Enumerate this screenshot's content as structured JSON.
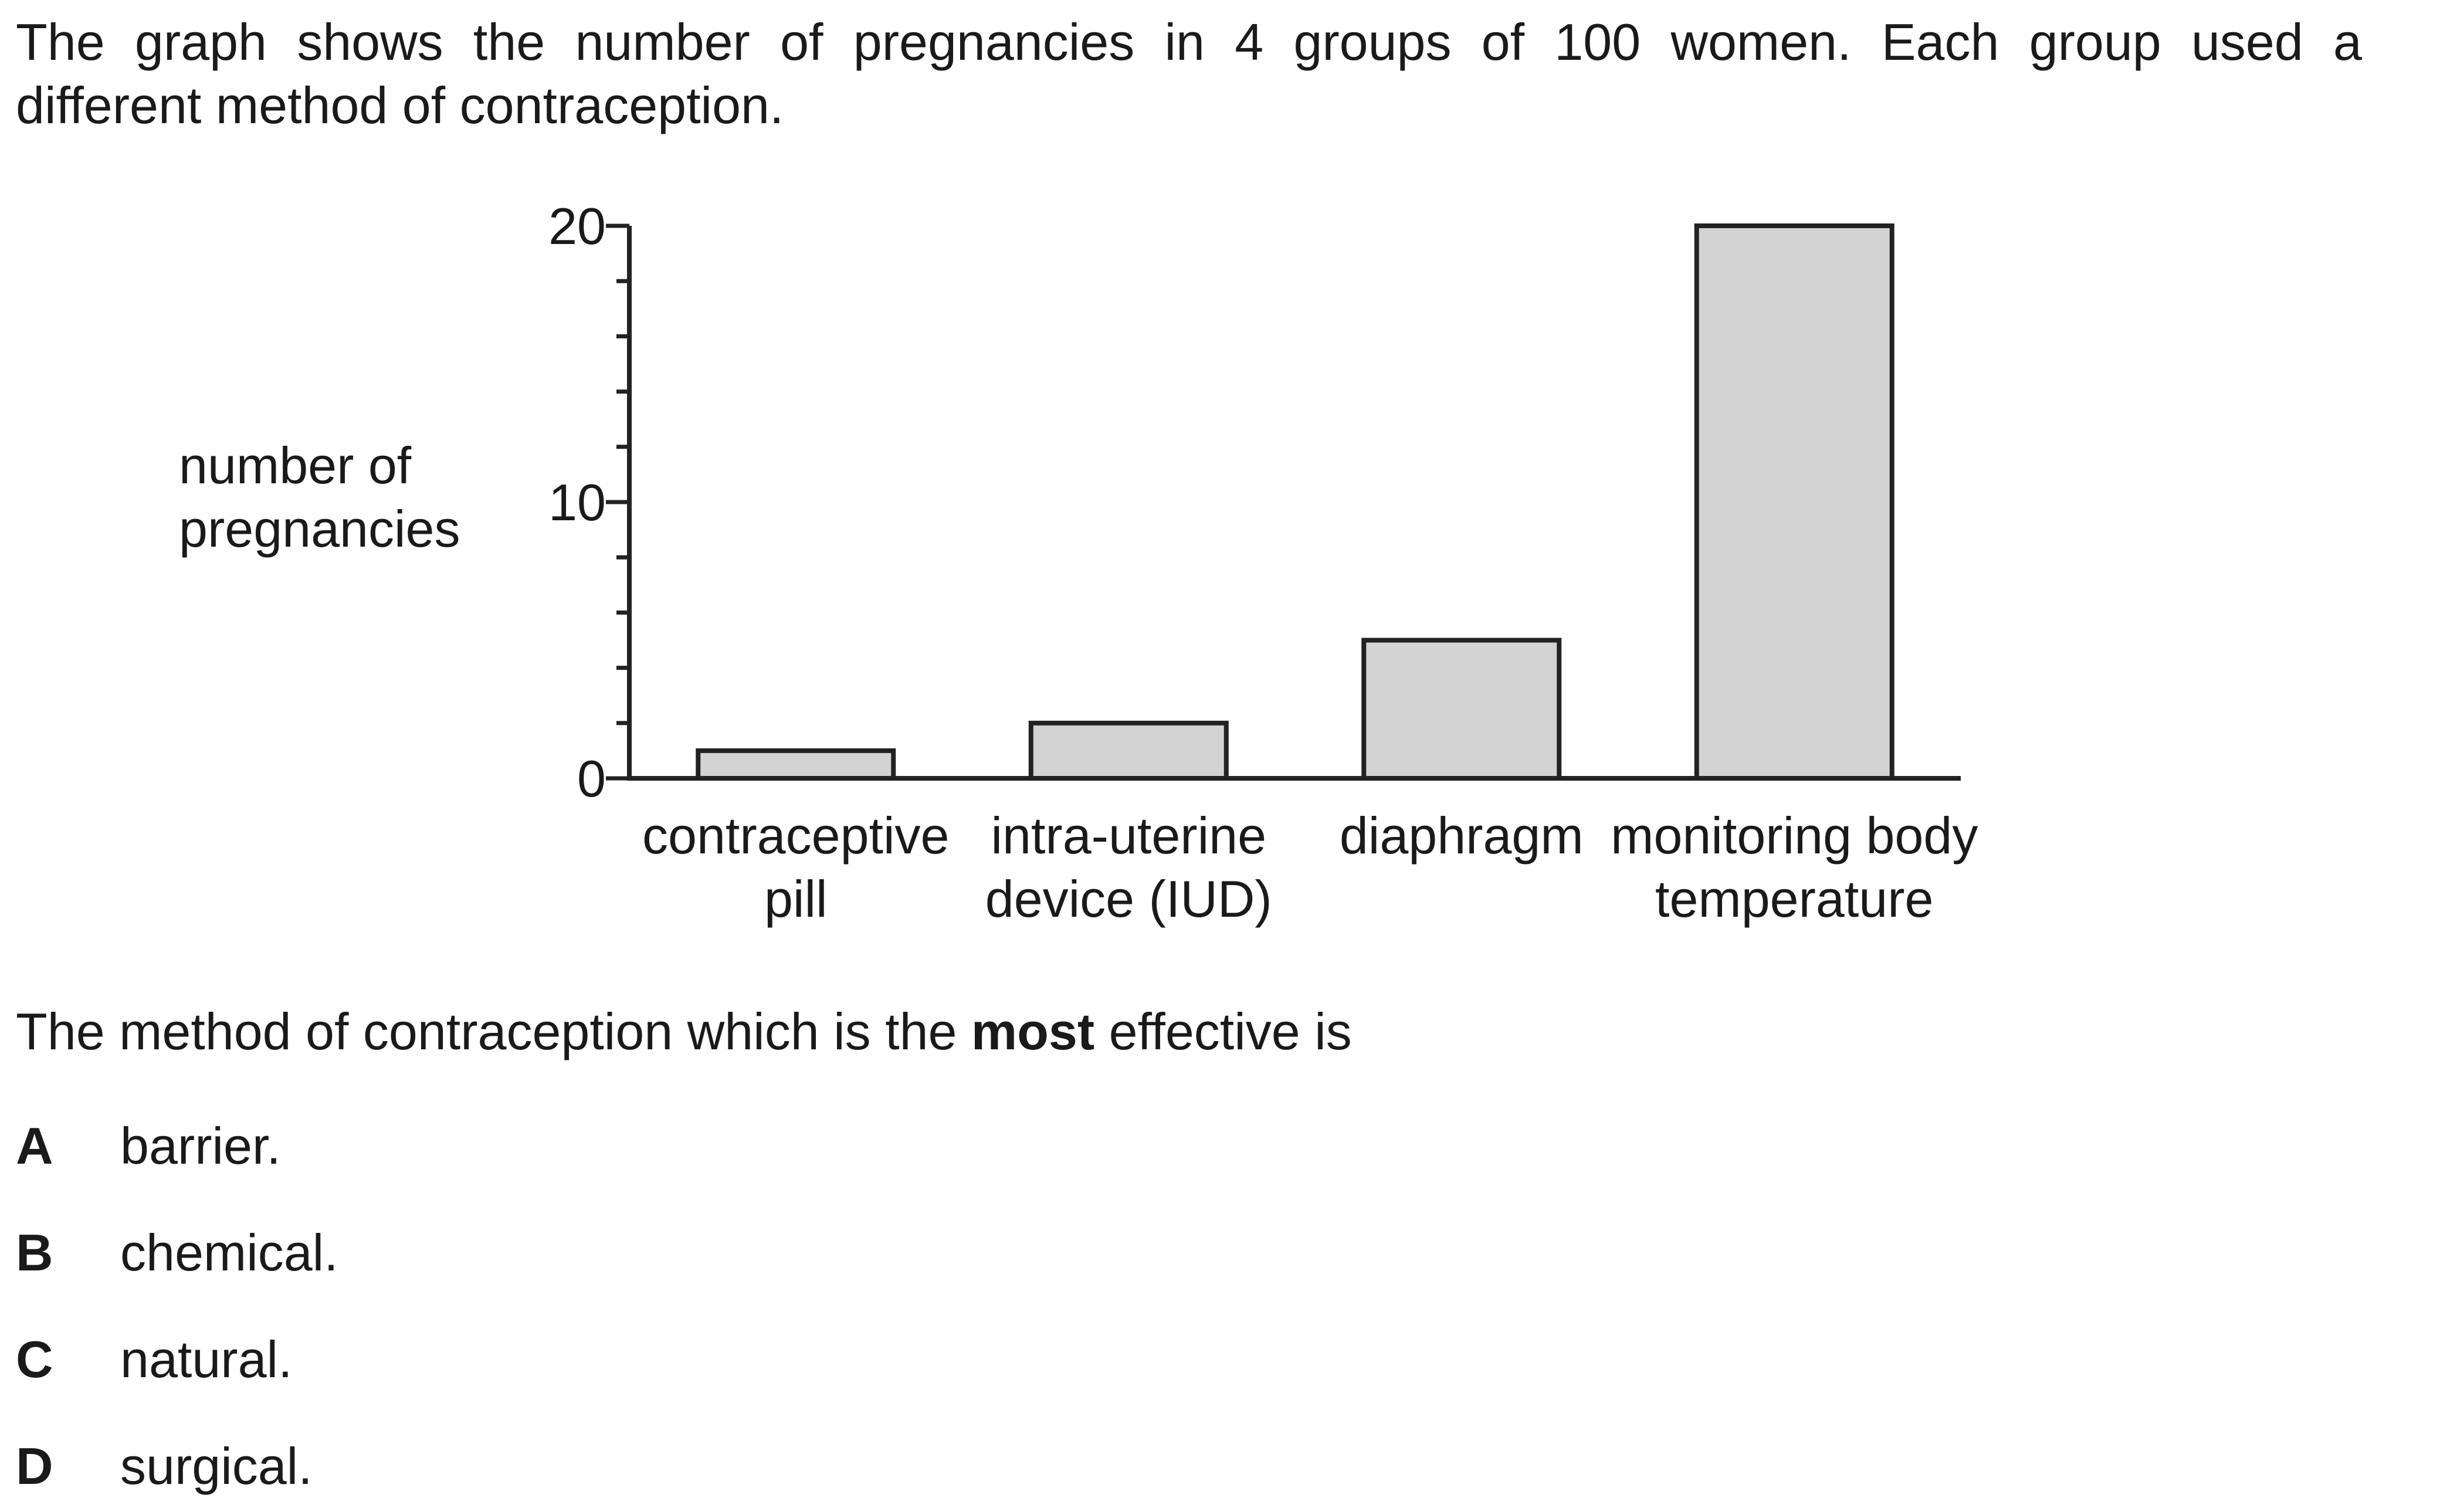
{
  "intro": {
    "line1": "The graph shows the number of pregnancies in 4 groups of 100 women. Each group used a",
    "line2": "different method of contraception."
  },
  "question": {
    "before": "The method of contraception which is the ",
    "bold": "most",
    "after": " effective is"
  },
  "options": [
    {
      "letter": "A",
      "text": "barrier."
    },
    {
      "letter": "B",
      "text": "chemical."
    },
    {
      "letter": "C",
      "text": "natural."
    },
    {
      "letter": "D",
      "text": "surgical."
    }
  ],
  "chart_data": {
    "type": "bar",
    "categories": [
      [
        "contraceptive",
        "pill"
      ],
      [
        "intra-uterine",
        "device (IUD)"
      ],
      [
        "diaphragm"
      ],
      [
        "monitoring body",
        "temperature"
      ]
    ],
    "values": [
      1,
      2,
      5,
      20
    ],
    "ylabel": [
      "number of",
      "pregnancies"
    ],
    "ylim": [
      0,
      20
    ],
    "yticks": [
      0,
      10,
      20
    ],
    "minor_step": 2,
    "bar_fill": "#d3d3d3",
    "bar_stroke": "#222222",
    "grid": false
  }
}
